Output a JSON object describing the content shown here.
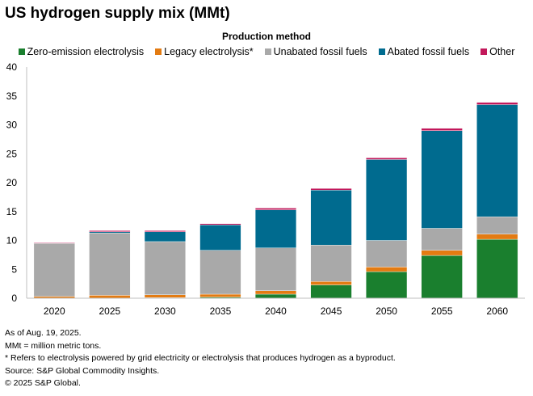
{
  "title": "US hydrogen supply mix (MMt)",
  "legend_title": "Production method",
  "chart_data": {
    "type": "bar",
    "stacked": true,
    "title": "US hydrogen supply mix (MMt)",
    "categories": [
      "2020",
      "2025",
      "2030",
      "2035",
      "2040",
      "2045",
      "2050",
      "2055",
      "2060"
    ],
    "ylim": [
      0,
      40
    ],
    "yticks": [
      0,
      5,
      10,
      15,
      20,
      25,
      30,
      35,
      40
    ],
    "grid": false,
    "legend_placement": "top",
    "series": [
      {
        "name": "Zero-emission electrolysis",
        "color": "#1a7f2e",
        "values": [
          0.0,
          0.0,
          0.1,
          0.2,
          0.7,
          2.3,
          4.6,
          7.4,
          10.2
        ]
      },
      {
        "name": "Legacy electrolysis*",
        "color": "#e37b12",
        "values": [
          0.3,
          0.5,
          0.5,
          0.5,
          0.6,
          0.6,
          0.8,
          0.9,
          0.9
        ]
      },
      {
        "name": "Unabated fossil fuels",
        "color": "#a9a9a9",
        "values": [
          9.2,
          10.8,
          9.2,
          7.6,
          7.4,
          6.3,
          4.6,
          3.8,
          3.0
        ]
      },
      {
        "name": "Abated fossil fuels",
        "color": "#006b8f",
        "values": [
          0.0,
          0.2,
          1.7,
          4.4,
          6.6,
          9.5,
          14.0,
          16.9,
          19.4
        ]
      },
      {
        "name": "Other",
        "color": "#c2185b",
        "values": [
          0.1,
          0.2,
          0.2,
          0.2,
          0.3,
          0.3,
          0.3,
          0.4,
          0.4
        ]
      }
    ]
  },
  "notes": [
    "As of Aug. 19, 2025.",
    "MMt = million metric tons.",
    "* Refers to electrolysis powered by grid electricity or electrolysis that produces hydrogen as a byproduct.",
    "Source: S&P Global Commodity Insights.",
    "© 2025 S&P Global."
  ]
}
